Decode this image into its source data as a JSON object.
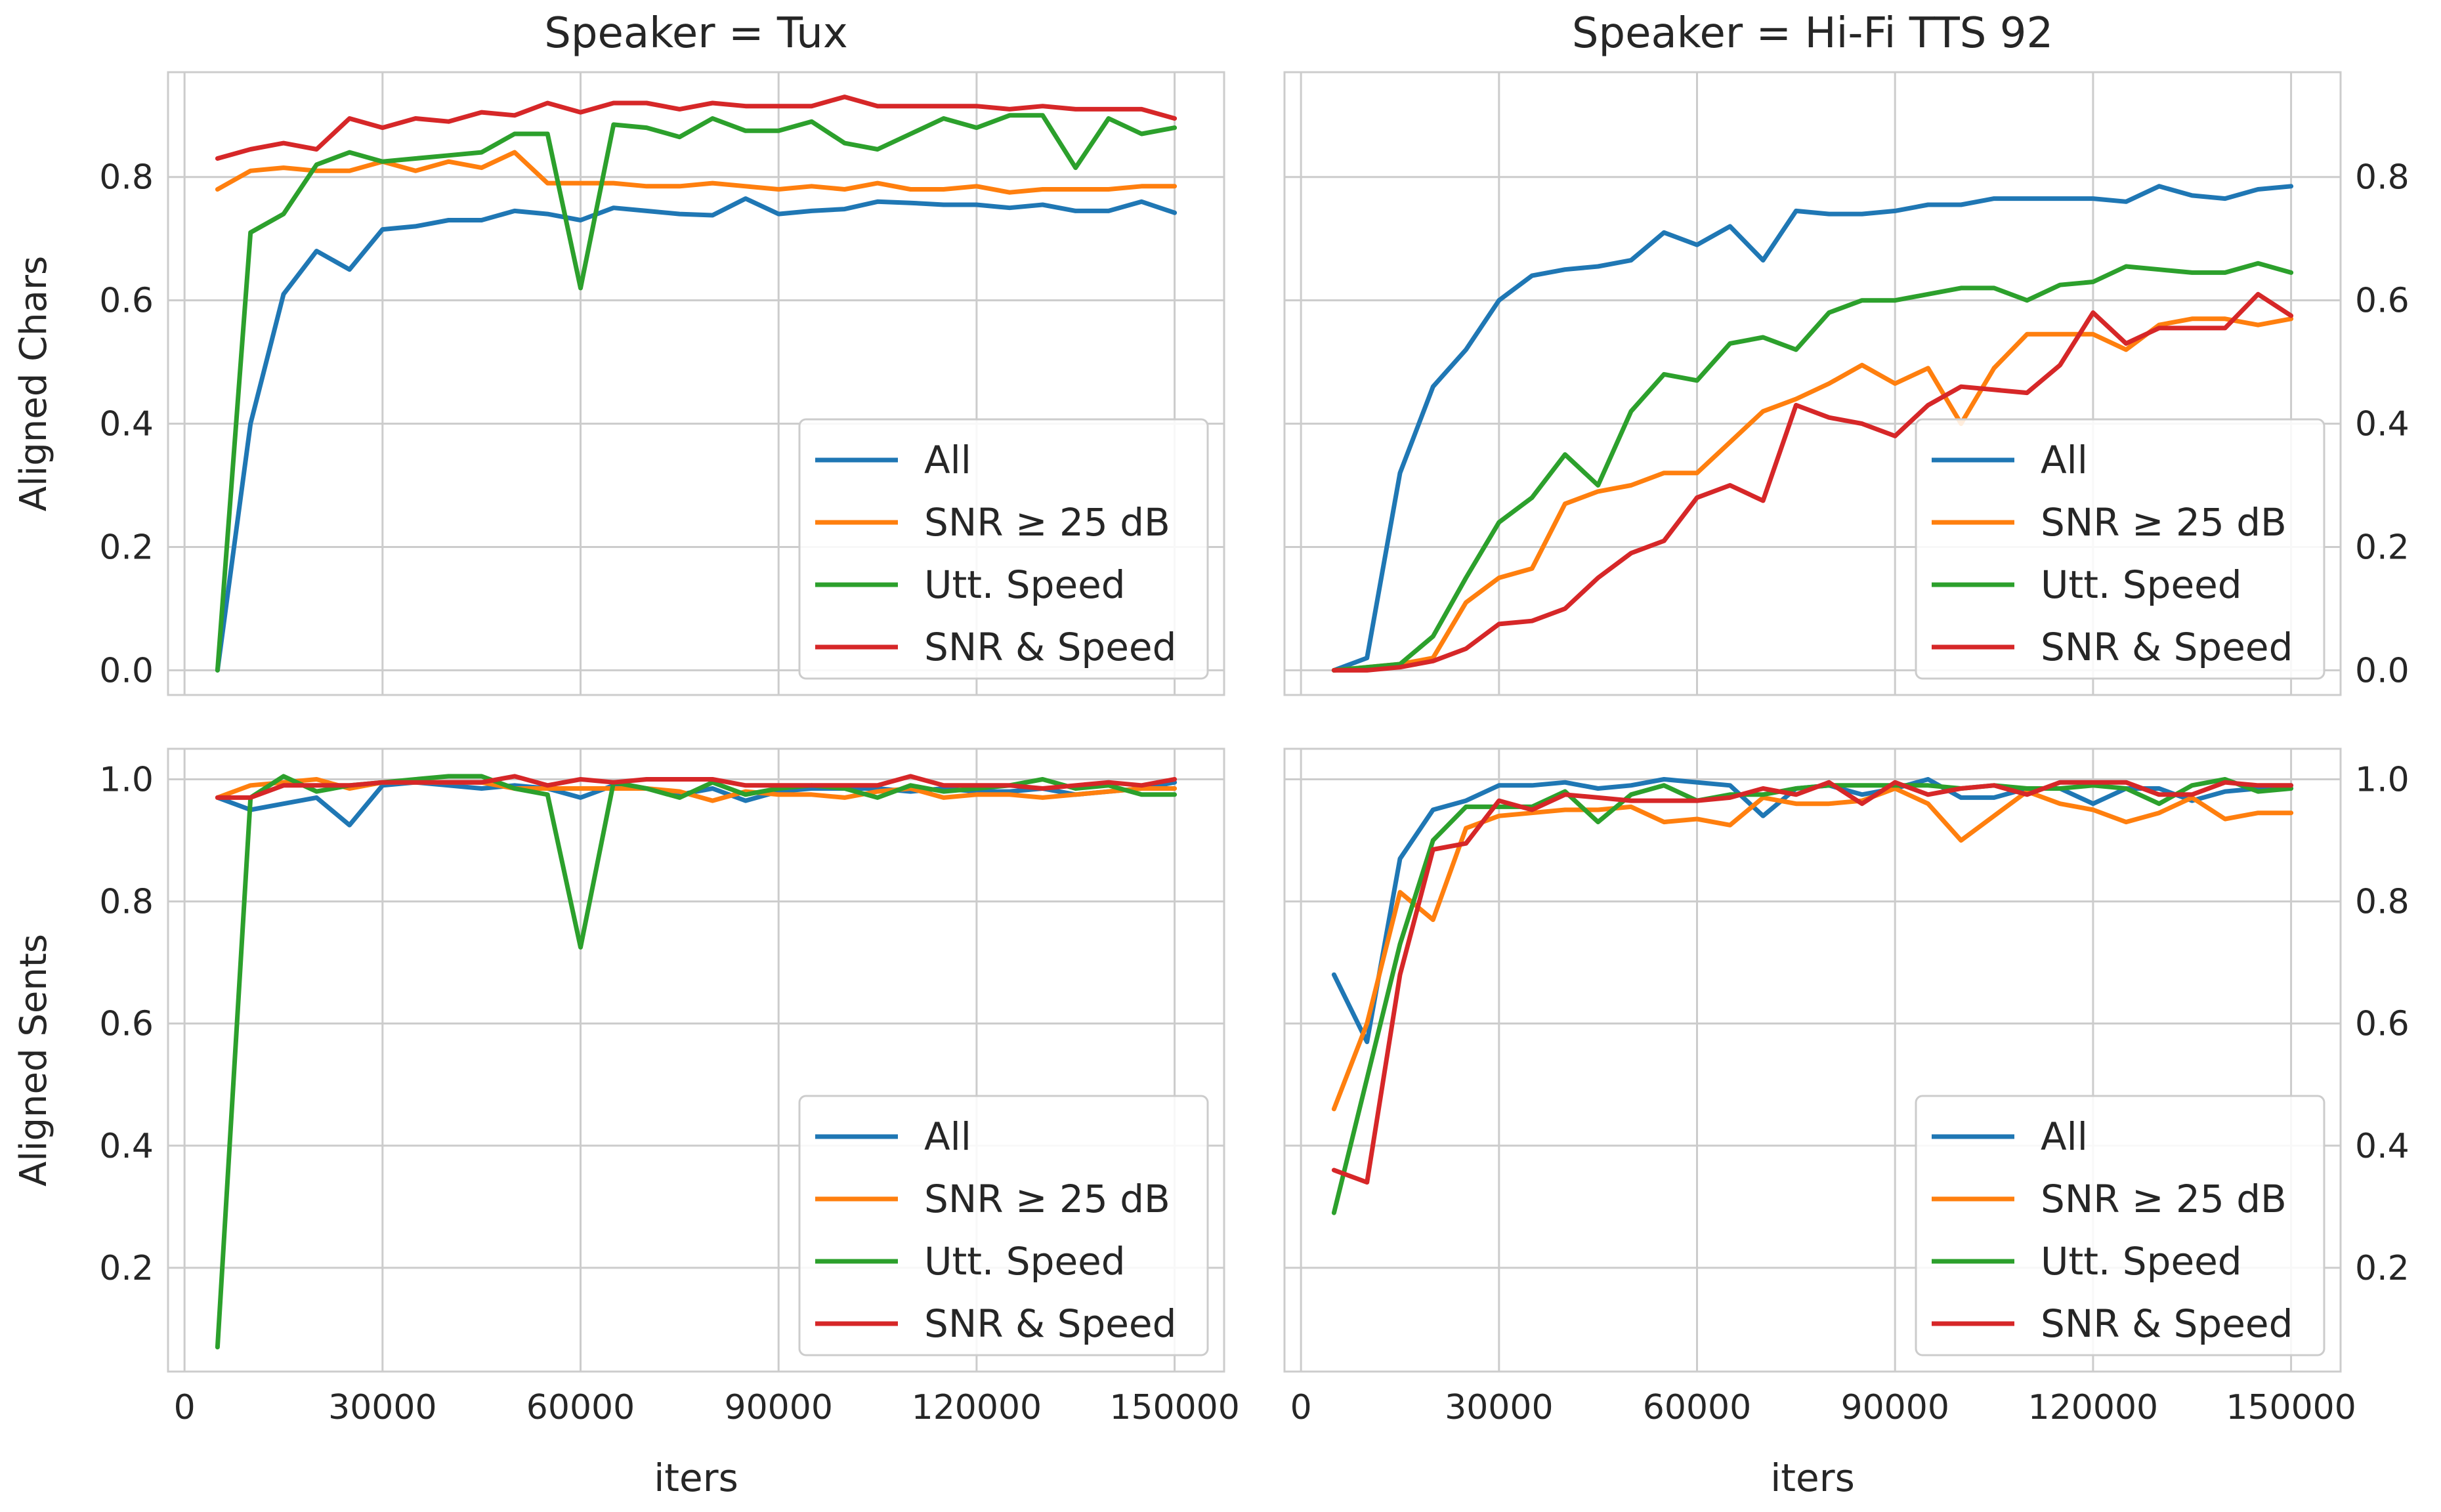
{
  "colors": {
    "All": "#1f77b4",
    "SNR ≥ 25 dB": "#ff7f0e",
    "Utt. Speed": "#2ca02c",
    "SNR & Speed": "#d62728",
    "grid": "#cccccc",
    "frame": "#cccccc",
    "text": "#262626",
    "panel_bg": "#ffffff"
  },
  "figure": {
    "xlabel": "iters",
    "column_titles": [
      "Speaker = Tux",
      "Speaker = Hi-Fi TTS 92"
    ],
    "row_ylabels": [
      "Aligned Chars",
      "Aligned Sents"
    ]
  },
  "chart_data": [
    {
      "type": "line",
      "title": "Speaker = Tux",
      "xlabel": "",
      "ylabel": "Aligned Chars",
      "xlim": [
        -2500,
        157500
      ],
      "ylim": [
        -0.04,
        0.97
      ],
      "xticks": [
        0,
        30000,
        60000,
        90000,
        120000,
        150000
      ],
      "yticks": [
        0.0,
        0.2,
        0.4,
        0.6,
        0.8
      ],
      "ytick_labels": [
        "0.0",
        "0.2",
        "0.4",
        "0.6",
        "0.8"
      ],
      "grid": true,
      "legend": "lower-right",
      "x": [
        5000,
        10000,
        15000,
        20000,
        25000,
        30000,
        35000,
        40000,
        45000,
        50000,
        55000,
        60000,
        65000,
        70000,
        75000,
        80000,
        85000,
        90000,
        95000,
        100000,
        105000,
        110000,
        115000,
        120000,
        125000,
        130000,
        135000,
        140000,
        145000,
        150000
      ],
      "series": [
        {
          "name": "All",
          "values": [
            0.0,
            0.4,
            0.61,
            0.68,
            0.65,
            0.715,
            0.72,
            0.73,
            0.73,
            0.745,
            0.74,
            0.73,
            0.75,
            0.745,
            0.74,
            0.738,
            0.765,
            0.74,
            0.745,
            0.748,
            0.76,
            0.758,
            0.755,
            0.755,
            0.75,
            0.755,
            0.745,
            0.745,
            0.76,
            0.742
          ]
        },
        {
          "name": "SNR ≥ 25 dB",
          "values": [
            0.78,
            0.81,
            0.815,
            0.81,
            0.81,
            0.825,
            0.81,
            0.825,
            0.815,
            0.84,
            0.79,
            0.79,
            0.79,
            0.785,
            0.785,
            0.79,
            0.785,
            0.78,
            0.785,
            0.78,
            0.79,
            0.78,
            0.78,
            0.785,
            0.775,
            0.78,
            0.78,
            0.78,
            0.785,
            0.785
          ]
        },
        {
          "name": "Utt. Speed",
          "values": [
            0.0,
            0.71,
            0.74,
            0.82,
            0.84,
            0.825,
            0.83,
            0.835,
            0.84,
            0.87,
            0.87,
            0.62,
            0.885,
            0.88,
            0.865,
            0.895,
            0.875,
            0.875,
            0.89,
            0.855,
            0.845,
            0.87,
            0.895,
            0.88,
            0.9,
            0.9,
            0.815,
            0.895,
            0.87,
            0.88
          ]
        },
        {
          "name": "SNR & Speed",
          "values": [
            0.83,
            0.845,
            0.855,
            0.845,
            0.895,
            0.88,
            0.895,
            0.89,
            0.905,
            0.9,
            0.92,
            0.905,
            0.92,
            0.92,
            0.91,
            0.92,
            0.915,
            0.915,
            0.915,
            0.93,
            0.915,
            0.915,
            0.915,
            0.915,
            0.91,
            0.915,
            0.91,
            0.91,
            0.91,
            0.895
          ]
        }
      ]
    },
    {
      "type": "line",
      "title": "Speaker = Hi-Fi TTS 92",
      "xlabel": "",
      "ylabel": "",
      "xlim": [
        -2500,
        157500
      ],
      "ylim": [
        -0.04,
        0.97
      ],
      "xticks": [
        0,
        30000,
        60000,
        90000,
        120000,
        150000
      ],
      "yticks": [
        0.0,
        0.2,
        0.4,
        0.6,
        0.8
      ],
      "ytick_labels": [
        "0.0",
        "0.2",
        "0.4",
        "0.6",
        "0.8"
      ],
      "grid": true,
      "legend": "lower-right",
      "x": [
        5000,
        10000,
        15000,
        20000,
        25000,
        30000,
        35000,
        40000,
        45000,
        50000,
        55000,
        60000,
        65000,
        70000,
        75000,
        80000,
        85000,
        90000,
        95000,
        100000,
        105000,
        110000,
        115000,
        120000,
        125000,
        130000,
        135000,
        140000,
        145000,
        150000
      ],
      "series": [
        {
          "name": "All",
          "values": [
            0.0,
            0.02,
            0.32,
            0.46,
            0.52,
            0.6,
            0.64,
            0.65,
            0.655,
            0.665,
            0.71,
            0.69,
            0.72,
            0.665,
            0.745,
            0.74,
            0.74,
            0.745,
            0.755,
            0.755,
            0.765,
            0.765,
            0.765,
            0.765,
            0.76,
            0.785,
            0.77,
            0.765,
            0.78,
            0.785
          ]
        },
        {
          "name": "SNR ≥ 25 dB",
          "values": [
            0.0,
            0.005,
            0.01,
            0.02,
            0.11,
            0.15,
            0.165,
            0.27,
            0.29,
            0.3,
            0.32,
            0.32,
            0.37,
            0.42,
            0.44,
            0.465,
            0.495,
            0.465,
            0.49,
            0.4,
            0.49,
            0.545,
            0.545,
            0.545,
            0.52,
            0.56,
            0.57,
            0.57,
            0.56,
            0.57
          ]
        },
        {
          "name": "Utt. Speed",
          "values": [
            0.0,
            0.005,
            0.01,
            0.055,
            0.15,
            0.24,
            0.28,
            0.35,
            0.3,
            0.42,
            0.48,
            0.47,
            0.53,
            0.54,
            0.52,
            0.58,
            0.6,
            0.6,
            0.61,
            0.62,
            0.62,
            0.6,
            0.625,
            0.63,
            0.655,
            0.65,
            0.645,
            0.645,
            0.66,
            0.645
          ]
        },
        {
          "name": "SNR & Speed",
          "values": [
            0.0,
            0.0,
            0.005,
            0.015,
            0.035,
            0.075,
            0.08,
            0.1,
            0.15,
            0.19,
            0.21,
            0.28,
            0.3,
            0.275,
            0.43,
            0.41,
            0.4,
            0.38,
            0.43,
            0.46,
            0.455,
            0.45,
            0.495,
            0.58,
            0.53,
            0.555,
            0.555,
            0.555,
            0.61,
            0.575
          ]
        }
      ]
    },
    {
      "type": "line",
      "title": "",
      "xlabel": "iters",
      "ylabel": "Aligned Sents",
      "xlim": [
        -2500,
        157500
      ],
      "ylim": [
        0.03,
        1.05
      ],
      "xticks": [
        0,
        30000,
        60000,
        90000,
        120000,
        150000
      ],
      "yticks": [
        0.2,
        0.4,
        0.6,
        0.8,
        1.0
      ],
      "ytick_labels": [
        "0.2",
        "0.4",
        "0.6",
        "0.8",
        "1.0"
      ],
      "grid": true,
      "legend": "lower-right",
      "x": [
        5000,
        10000,
        15000,
        20000,
        25000,
        30000,
        35000,
        40000,
        45000,
        50000,
        55000,
        60000,
        65000,
        70000,
        75000,
        80000,
        85000,
        90000,
        95000,
        100000,
        105000,
        110000,
        115000,
        120000,
        125000,
        130000,
        135000,
        140000,
        145000,
        150000
      ],
      "series": [
        {
          "name": "All",
          "values": [
            0.97,
            0.95,
            0.96,
            0.97,
            0.925,
            0.99,
            0.995,
            0.99,
            0.985,
            0.99,
            0.985,
            0.97,
            0.99,
            0.985,
            0.975,
            0.985,
            0.965,
            0.98,
            0.985,
            0.985,
            0.985,
            0.98,
            0.985,
            0.98,
            0.98,
            0.985,
            0.975,
            0.98,
            0.985,
            0.995
          ]
        },
        {
          "name": "SNR ≥ 25 dB",
          "values": [
            0.97,
            0.99,
            0.995,
            1.0,
            0.985,
            0.995,
            0.995,
            0.995,
            0.995,
            0.985,
            0.985,
            0.985,
            0.985,
            0.985,
            0.98,
            0.965,
            0.98,
            0.975,
            0.975,
            0.97,
            0.98,
            0.985,
            0.97,
            0.975,
            0.975,
            0.97,
            0.975,
            0.98,
            0.985,
            0.985
          ]
        },
        {
          "name": "Utt. Speed",
          "values": [
            0.07,
            0.97,
            1.005,
            0.98,
            0.99,
            0.995,
            1.0,
            1.005,
            1.005,
            0.985,
            0.975,
            0.725,
            0.995,
            0.985,
            0.97,
            0.995,
            0.975,
            0.985,
            0.99,
            0.985,
            0.97,
            0.99,
            0.98,
            0.985,
            0.99,
            1.0,
            0.985,
            0.99,
            0.975,
            0.975
          ]
        },
        {
          "name": "SNR & Speed",
          "values": [
            0.97,
            0.97,
            0.99,
            0.99,
            0.99,
            0.995,
            0.995,
            0.995,
            0.995,
            1.005,
            0.99,
            1.0,
            0.995,
            1.0,
            1.0,
            1.0,
            0.99,
            0.99,
            0.99,
            0.99,
            0.99,
            1.005,
            0.99,
            0.99,
            0.99,
            0.985,
            0.99,
            0.995,
            0.99,
            1.0
          ]
        }
      ]
    },
    {
      "type": "line",
      "title": "",
      "xlabel": "iters",
      "ylabel": "",
      "xlim": [
        -2500,
        157500
      ],
      "ylim": [
        0.03,
        1.05
      ],
      "xticks": [
        0,
        30000,
        60000,
        90000,
        120000,
        150000
      ],
      "yticks": [
        0.2,
        0.4,
        0.6,
        0.8,
        1.0
      ],
      "ytick_labels": [
        "0.2",
        "0.4",
        "0.6",
        "0.8",
        "1.0"
      ],
      "grid": true,
      "legend": "lower-right",
      "x": [
        5000,
        10000,
        15000,
        20000,
        25000,
        30000,
        35000,
        40000,
        45000,
        50000,
        55000,
        60000,
        65000,
        70000,
        75000,
        80000,
        85000,
        90000,
        95000,
        100000,
        105000,
        110000,
        115000,
        120000,
        125000,
        130000,
        135000,
        140000,
        145000,
        150000
      ],
      "series": [
        {
          "name": "All",
          "values": [
            0.68,
            0.57,
            0.87,
            0.95,
            0.965,
            0.99,
            0.99,
            0.995,
            0.985,
            0.99,
            1.0,
            0.995,
            0.99,
            0.94,
            0.985,
            0.99,
            0.975,
            0.985,
            1.0,
            0.97,
            0.97,
            0.985,
            0.985,
            0.96,
            0.985,
            0.985,
            0.965,
            0.98,
            0.985,
            0.99
          ]
        },
        {
          "name": "SNR ≥ 25 dB",
          "values": [
            0.46,
            0.6,
            0.815,
            0.77,
            0.92,
            0.94,
            0.945,
            0.95,
            0.95,
            0.955,
            0.93,
            0.935,
            0.925,
            0.97,
            0.96,
            0.96,
            0.965,
            0.985,
            0.96,
            0.9,
            0.94,
            0.98,
            0.96,
            0.95,
            0.93,
            0.945,
            0.97,
            0.935,
            0.945,
            0.945
          ]
        },
        {
          "name": "Utt. Speed",
          "values": [
            0.29,
            0.51,
            0.73,
            0.9,
            0.955,
            0.955,
            0.955,
            0.98,
            0.93,
            0.975,
            0.99,
            0.965,
            0.975,
            0.975,
            0.985,
            0.99,
            0.99,
            0.99,
            0.99,
            0.985,
            0.99,
            0.985,
            0.985,
            0.99,
            0.985,
            0.96,
            0.99,
            1.0,
            0.98,
            0.985
          ]
        },
        {
          "name": "SNR & Speed",
          "values": [
            0.36,
            0.34,
            0.68,
            0.885,
            0.895,
            0.965,
            0.95,
            0.975,
            0.97,
            0.965,
            0.965,
            0.965,
            0.97,
            0.985,
            0.975,
            0.995,
            0.96,
            0.995,
            0.975,
            0.985,
            0.99,
            0.975,
            0.995,
            0.995,
            0.995,
            0.975,
            0.975,
            0.995,
            0.99,
            0.99
          ]
        }
      ]
    }
  ]
}
